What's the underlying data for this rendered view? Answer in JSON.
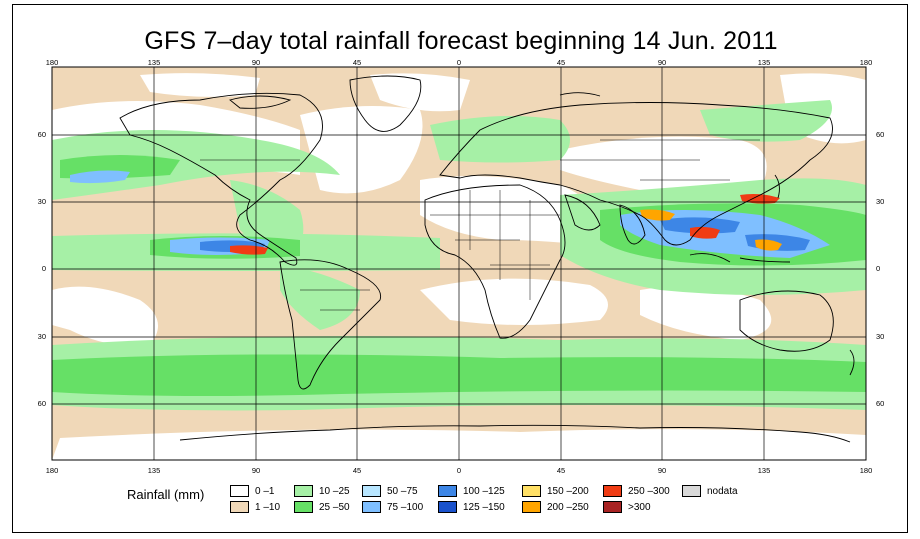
{
  "title": "GFS 7–day total rainfall forecast beginning 14 Jun. 2011",
  "lon_ticks": [
    "180",
    "135",
    "90",
    "45",
    "0",
    "45",
    "90",
    "135",
    "180"
  ],
  "lat_ticks": [
    "60",
    "30",
    "0",
    "30",
    "60"
  ],
  "legend": {
    "label": "Rainfall (mm)",
    "items": [
      {
        "label": "0 –1",
        "color": "#ffffff"
      },
      {
        "label": "1 –10",
        "color": "#f0d8b8"
      },
      {
        "label": "10 –25",
        "color": "#a6f0a6"
      },
      {
        "label": "25 –50",
        "color": "#66e066"
      },
      {
        "label": "50 –75",
        "color": "#b8e6ff"
      },
      {
        "label": "75 –100",
        "color": "#7fbfff"
      },
      {
        "label": "100 –125",
        "color": "#3d86e6"
      },
      {
        "label": "125 –150",
        "color": "#1a52cc"
      },
      {
        "label": "150 –200",
        "color": "#ffe066"
      },
      {
        "label": "200 –250",
        "color": "#ffa500"
      },
      {
        "label": "250 –300",
        "color": "#f03c14"
      },
      {
        "label": ">300",
        "color": "#a82323"
      },
      {
        "label": "nodata",
        "color": "#d9d9d9"
      }
    ]
  }
}
